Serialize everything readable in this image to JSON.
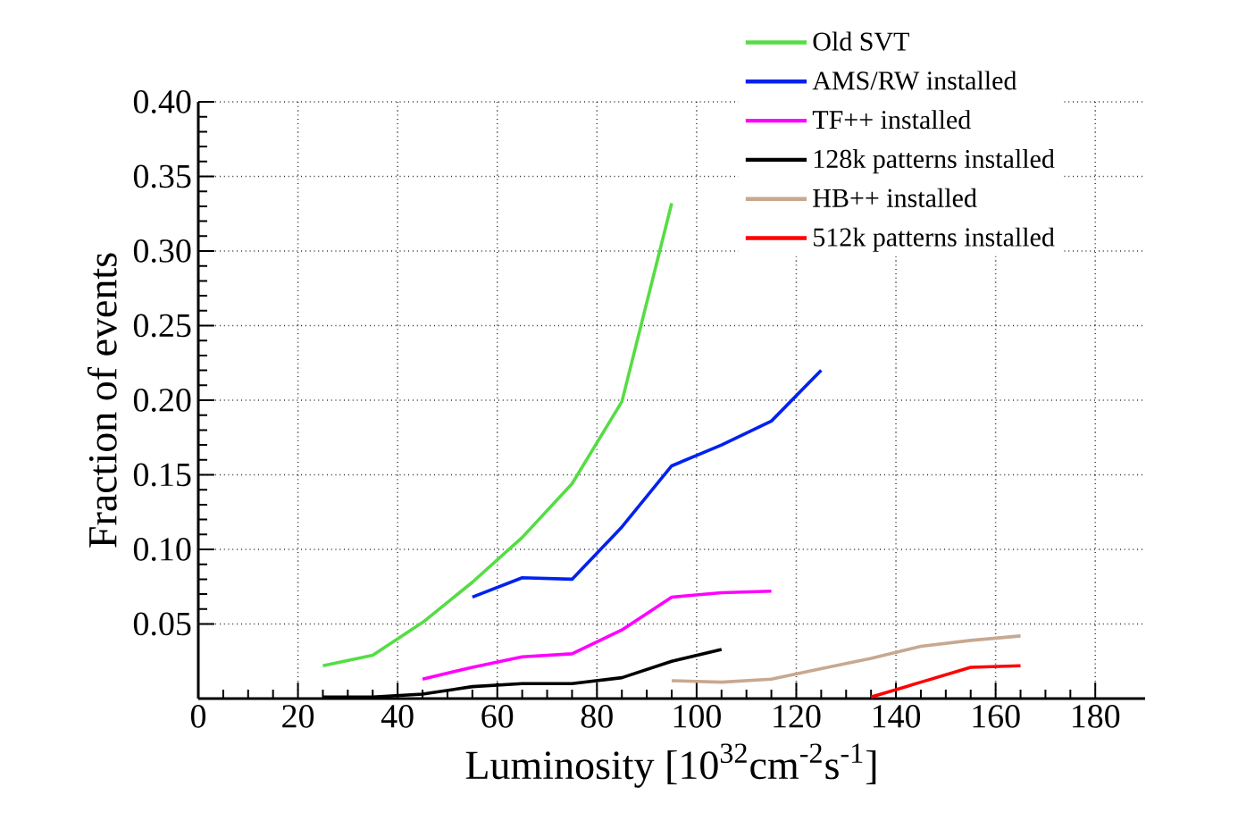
{
  "chart_data": {
    "type": "line",
    "xlabel": "Luminosity [10$^{32}$cm$^{-2}$s$^{-1}$]",
    "ylabel": "Fraction of events",
    "xlim": [
      0,
      190
    ],
    "xticks": [
      0,
      20,
      40,
      60,
      80,
      100,
      120,
      140,
      160,
      180
    ],
    "ylim": [
      0,
      0.4
    ],
    "yticks": [
      0.05,
      {
        "value": 0.1,
        "label": "0.10"
      },
      0.15,
      {
        "value": 0.2,
        "label": "0.20"
      },
      0.25,
      {
        "value": 0.3,
        "label": "0.30"
      },
      0.35,
      {
        "value": 0.4,
        "label": "0.40"
      }
    ],
    "grid": true,
    "legend": "top right",
    "marker": "none",
    "line_style": "solid",
    "series": [
      {
        "name": "Old SVT",
        "color": "#55dd44",
        "x": [
          25,
          35,
          45,
          55,
          65,
          75,
          85,
          95
        ],
        "values": [
          0.022,
          0.029,
          0.051,
          0.078,
          0.108,
          0.144,
          0.199,
          0.332
        ]
      },
      {
        "name": "AMS/RW installed",
        "color": "#0022ee",
        "x": [
          55,
          65,
          75,
          85,
          95,
          105,
          115,
          125
        ],
        "values": [
          0.068,
          0.081,
          0.08,
          0.115,
          0.156,
          0.17,
          0.186,
          0.22
        ]
      },
      {
        "name": "TF++ installed",
        "color": "#ff00ff",
        "x": [
          45,
          55,
          65,
          75,
          85,
          95,
          105,
          115
        ],
        "values": [
          0.013,
          0.021,
          0.028,
          0.03,
          0.046,
          0.068,
          0.071,
          0.072
        ]
      },
      {
        "name": "128k patterns installed",
        "color": "#000000",
        "x": [
          25,
          35,
          45,
          55,
          65,
          75,
          85,
          95,
          105
        ],
        "values": [
          0.001,
          0.001,
          0.003,
          0.008,
          0.01,
          0.01,
          0.014,
          0.025,
          0.033
        ]
      },
      {
        "name": "HB++ installed",
        "color": "#c8a890",
        "x": [
          95,
          105,
          115,
          125,
          135,
          145,
          155,
          165
        ],
        "values": [
          0.012,
          0.011,
          0.013,
          0.02,
          0.027,
          0.035,
          0.039,
          0.042
        ]
      },
      {
        "name": "512k patterns installed",
        "color": "#ff0000",
        "x": [
          135,
          145,
          155,
          165
        ],
        "values": [
          0.001,
          0.011,
          0.021,
          0.022
        ]
      }
    ]
  }
}
